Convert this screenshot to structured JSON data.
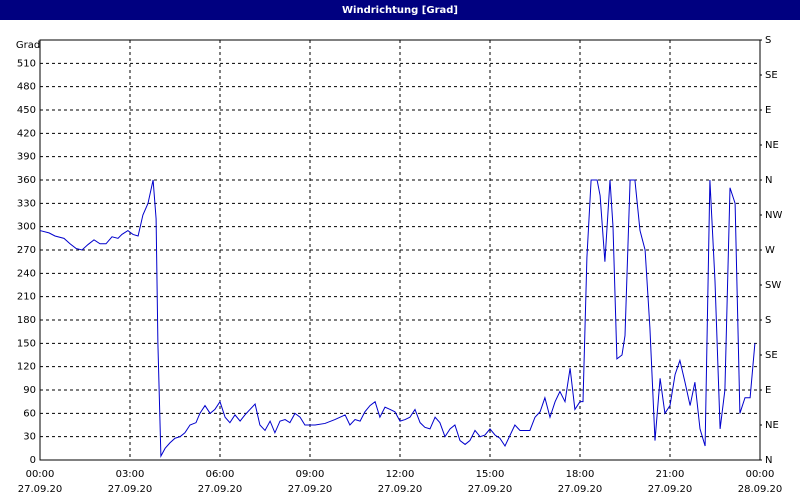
{
  "chart_data": {
    "type": "line",
    "title": "Windrichtung [Grad]",
    "y_label": "Grad",
    "ylim": [
      0,
      540
    ],
    "yticks": [
      0,
      30,
      60,
      90,
      120,
      150,
      180,
      210,
      240,
      270,
      300,
      330,
      360,
      390,
      420,
      450,
      480,
      510
    ],
    "y2lim": [
      0,
      540
    ],
    "y2ticks": [
      {
        "value": 0,
        "label": "N"
      },
      {
        "value": 45,
        "label": "NE"
      },
      {
        "value": 90,
        "label": "E"
      },
      {
        "value": 135,
        "label": "SE"
      },
      {
        "value": 180,
        "label": "S"
      },
      {
        "value": 225,
        "label": "SW"
      },
      {
        "value": 270,
        "label": "W"
      },
      {
        "value": 315,
        "label": "NW"
      },
      {
        "value": 360,
        "label": "N"
      },
      {
        "value": 405,
        "label": "NE"
      },
      {
        "value": 450,
        "label": "E"
      },
      {
        "value": 495,
        "label": "SE"
      },
      {
        "value": 540,
        "label": "S"
      }
    ],
    "xlim": [
      0,
      24
    ],
    "xticks": [
      {
        "value": 0,
        "label": "00:00",
        "date": "27.09.20"
      },
      {
        "value": 3,
        "label": "03:00",
        "date": "27.09.20"
      },
      {
        "value": 6,
        "label": "06:00",
        "date": "27.09.20"
      },
      {
        "value": 9,
        "label": "09:00",
        "date": "27.09.20"
      },
      {
        "value": 12,
        "label": "12:00",
        "date": "27.09.20"
      },
      {
        "value": 15,
        "label": "15:00",
        "date": "27.09.20"
      },
      {
        "value": 18,
        "label": "18:00",
        "date": "27.09.20"
      },
      {
        "value": 21,
        "label": "21:00",
        "date": "27.09.20"
      },
      {
        "value": 24,
        "label": "00:00",
        "date": "28.09.20"
      }
    ],
    "grid": true,
    "series": [
      {
        "color": "#0000cc",
        "x": [
          0,
          0.3,
          0.5,
          0.8,
          1.0,
          1.2,
          1.4,
          1.6,
          1.8,
          2.0,
          2.2,
          2.4,
          2.6,
          2.73,
          2.93,
          3.1,
          3.27,
          3.43,
          3.6,
          3.77,
          3.87,
          3.93,
          4.03,
          4.17,
          4.33,
          4.5,
          4.67,
          4.83,
          5.0,
          5.2,
          5.33,
          5.5,
          5.67,
          5.83,
          6.0,
          6.17,
          6.33,
          6.5,
          6.67,
          6.83,
          7.0,
          7.17,
          7.33,
          7.5,
          7.67,
          7.83,
          8.0,
          8.17,
          8.33,
          8.5,
          8.67,
          8.83,
          9.17,
          9.5,
          9.83,
          10.17,
          10.33,
          10.5,
          10.67,
          10.83,
          11.0,
          11.17,
          11.33,
          11.5,
          11.67,
          11.83,
          12.0,
          12.17,
          12.33,
          12.5,
          12.67,
          12.83,
          13.0,
          13.17,
          13.33,
          13.5,
          13.67,
          13.83,
          14.0,
          14.17,
          14.33,
          14.5,
          14.67,
          14.83,
          15.0,
          15.17,
          15.33,
          15.5,
          15.67,
          15.83,
          16.0,
          16.17,
          16.33,
          16.5,
          16.67,
          16.83,
          17.0,
          17.17,
          17.33,
          17.5,
          17.67,
          17.83,
          18.0,
          18.1,
          18.23,
          18.37,
          18.57,
          18.67,
          18.83,
          19.0,
          19.1,
          19.23,
          19.4,
          19.5,
          19.67,
          19.83,
          20.0,
          20.17,
          20.33,
          20.5,
          20.67,
          20.83,
          21.0,
          21.17,
          21.33,
          21.5,
          21.67,
          21.83,
          22.0,
          22.17,
          22.33,
          22.5,
          22.67,
          22.83,
          23.0,
          23.17,
          23.33,
          23.5,
          23.67,
          23.83
        ],
        "values": [
          295,
          292,
          288,
          285,
          278,
          272,
          270,
          277,
          283,
          278,
          278,
          287,
          285,
          290,
          295,
          290,
          288,
          315,
          330,
          360,
          310,
          150,
          5,
          15,
          22,
          28,
          30,
          35,
          45,
          48,
          60,
          70,
          60,
          65,
          75,
          55,
          48,
          58,
          50,
          58,
          65,
          72,
          45,
          38,
          50,
          35,
          50,
          52,
          48,
          60,
          55,
          45,
          45,
          47,
          52,
          58,
          45,
          52,
          50,
          62,
          70,
          75,
          55,
          68,
          65,
          62,
          50,
          52,
          55,
          65,
          48,
          42,
          40,
          55,
          48,
          30,
          40,
          45,
          25,
          20,
          25,
          38,
          30,
          32,
          40,
          32,
          28,
          18,
          32,
          45,
          38,
          38,
          38,
          55,
          62,
          80,
          55,
          75,
          88,
          75,
          118,
          65,
          75,
          75,
          260,
          360,
          360,
          340,
          255,
          360,
          300,
          130,
          135,
          160,
          360,
          360,
          295,
          270,
          170,
          25,
          105,
          60,
          70,
          110,
          128,
          100,
          70,
          100,
          40,
          18,
          360,
          230,
          40,
          90,
          350,
          330,
          60,
          80,
          80,
          150
        ]
      }
    ]
  }
}
